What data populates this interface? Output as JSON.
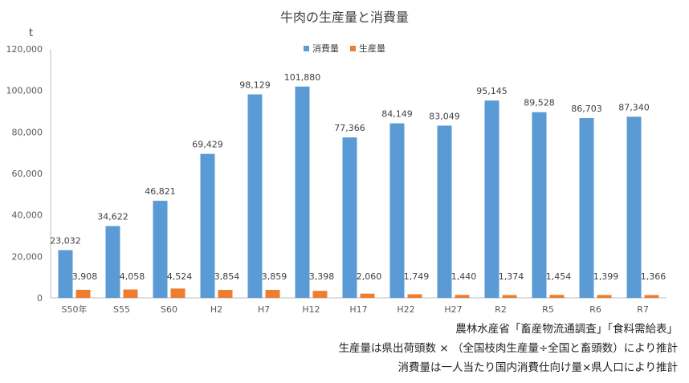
{
  "chart_data": {
    "type": "bar",
    "title": "牛肉の生産量と消費量",
    "ylabel": "t",
    "ylim": [
      0,
      120000
    ],
    "yticks": [
      0,
      20000,
      40000,
      60000,
      80000,
      100000,
      120000
    ],
    "ytick_labels": [
      "0",
      "20,000",
      "40,000",
      "60,000",
      "80,000",
      "100,000",
      "120,000"
    ],
    "categories": [
      "S50年",
      "S55",
      "S60",
      "H2",
      "H7",
      "H12",
      "H17",
      "H22",
      "H27",
      "R2",
      "R5",
      "R6",
      "R7"
    ],
    "series": [
      {
        "name": "消費量",
        "color": "#5B9BD5",
        "values": [
          23032,
          34622,
          46821,
          69429,
          98129,
          101880,
          77366,
          84149,
          83049,
          95145,
          89528,
          86703,
          87340
        ],
        "labels": [
          "23,032",
          "34,622",
          "46,821",
          "69,429",
          "98,129",
          "101,880",
          "77,366",
          "84,149",
          "83,049",
          "95,145",
          "89,528",
          "86,703",
          "87,340"
        ]
      },
      {
        "name": "生産量",
        "color": "#ED7D31",
        "values": [
          3908,
          4058,
          4524,
          3854,
          3859,
          3398,
          2060,
          1749,
          1440,
          1374,
          1454,
          1399,
          1366
        ],
        "labels": [
          "3,908",
          "4,058",
          "4,524",
          "3,854",
          "3,859",
          "3,398",
          "2,060",
          "1,749",
          "1,440",
          "1,374",
          "1,454",
          "1,399",
          "1,366"
        ]
      }
    ],
    "legend_position": "top-center",
    "grid": false
  },
  "notes": {
    "source": "農林水産省「畜産物流通調査」「食料需給表」",
    "production_note": "生産量は県出荷頭数 × （全国枝肉生産量÷全国と畜頭数）により推計",
    "consumption_note": "消費量は一人当たり国内消費仕向け量×県人口により推計"
  }
}
